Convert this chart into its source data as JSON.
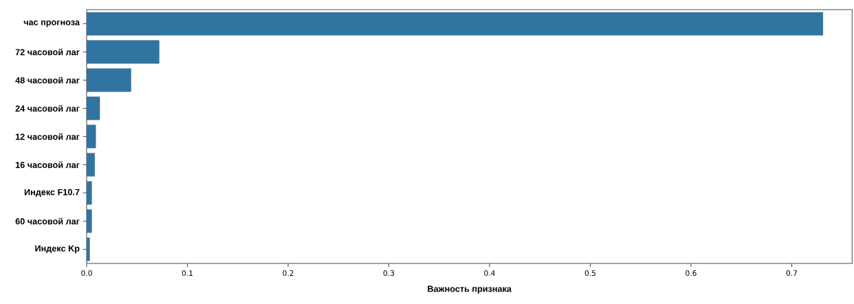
{
  "chart_data": {
    "type": "bar",
    "orientation": "horizontal",
    "xlabel": "Важность признака",
    "categories": [
      "час прогноза",
      "72 часовой лаг",
      "48 часовой лаг",
      "24 часовой лаг",
      "12 часовой лаг",
      "16 часовой лаг",
      "Индекс F10.7",
      "60 часовой лаг",
      "Индекс Kp"
    ],
    "values": [
      0.731,
      0.072,
      0.044,
      0.013,
      0.009,
      0.008,
      0.005,
      0.005,
      0.003
    ],
    "color": "#3274a1",
    "xlim": [
      0,
      0.76
    ],
    "xticks": [
      {
        "value": 0,
        "label": "0.0"
      },
      0.1,
      0.2,
      0.3,
      0.4,
      0.5,
      0.6,
      0.7
    ]
  }
}
